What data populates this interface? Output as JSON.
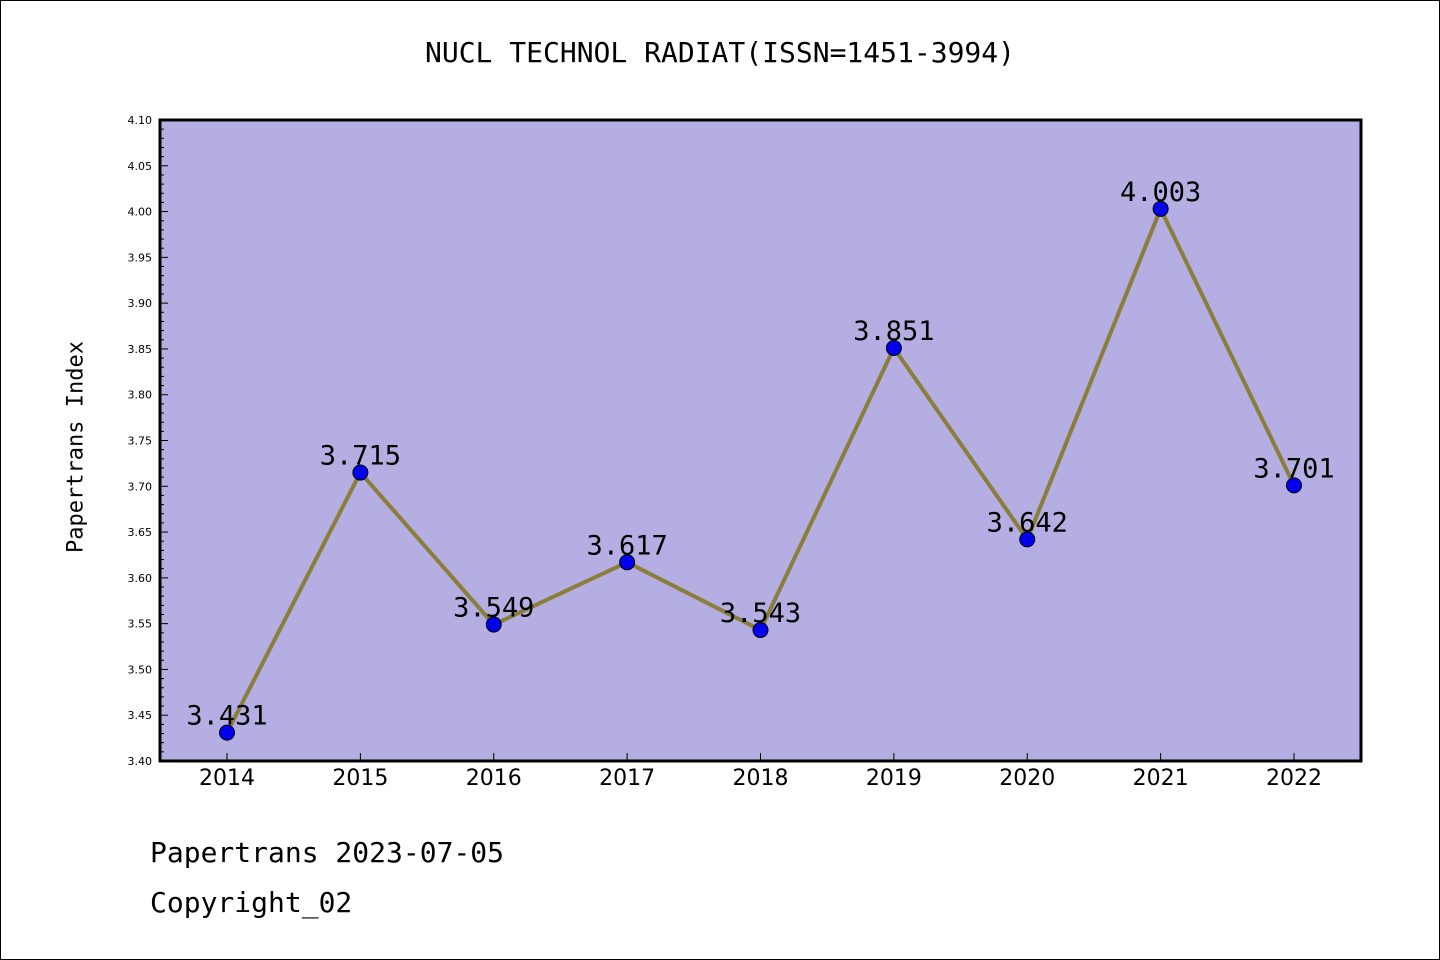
{
  "chart_data": {
    "type": "line",
    "title": "NUCL TECHNOL RADIAT(ISSN=1451-3994)",
    "xlabel": "",
    "ylabel": "Papertrans Index",
    "categories": [
      "2014",
      "2015",
      "2016",
      "2017",
      "2018",
      "2019",
      "2020",
      "2021",
      "2022"
    ],
    "values": [
      3.431,
      3.715,
      3.549,
      3.617,
      3.543,
      3.851,
      3.642,
      4.003,
      3.701
    ],
    "data_labels": [
      "3.431",
      "3.715",
      "3.549",
      "3.617",
      "3.543",
      "3.851",
      "3.642",
      "4.003",
      "3.701"
    ],
    "ylim": [
      3.4,
      4.1
    ],
    "yticks": [
      "3.40",
      "3.45",
      "3.50",
      "3.55",
      "3.60",
      "3.65",
      "3.70",
      "3.75",
      "3.80",
      "3.85",
      "3.90",
      "3.95",
      "4.00",
      "4.05",
      "4.10"
    ],
    "grid": false,
    "colors": {
      "plot_background": "#b4aee2",
      "line": "#8b7d3a",
      "marker": "#0000ee"
    }
  },
  "footer": {
    "line1": "Papertrans 2023-07-05",
    "line2": "Copyright_02"
  }
}
